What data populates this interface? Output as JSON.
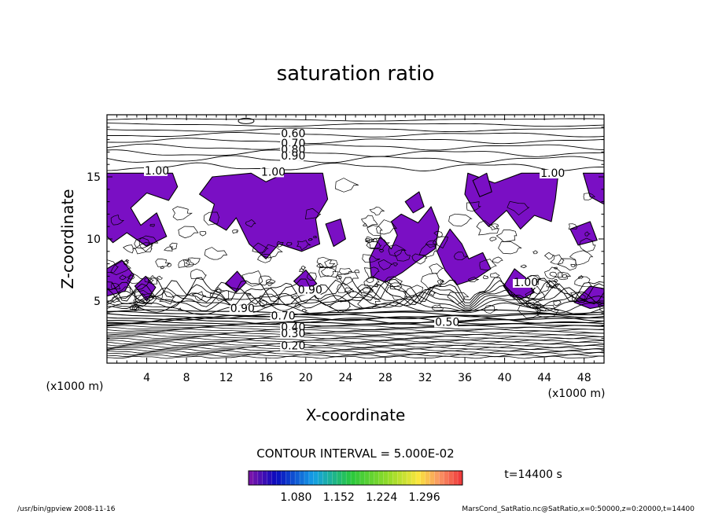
{
  "chart_data": {
    "type": "contour",
    "title": "saturation ratio",
    "xlabel": "X-coordinate",
    "ylabel": "Z-coordinate",
    "x_unit": "(x1000 m)",
    "y_unit": "(x1000 m)",
    "xlim": [
      0,
      50
    ],
    "ylim": [
      0,
      20
    ],
    "x_ticks": [
      4,
      8,
      12,
      16,
      20,
      24,
      28,
      32,
      36,
      40,
      44,
      48
    ],
    "y_ticks": [
      5,
      10,
      15
    ],
    "contour_labels": [
      {
        "text": "0.60",
        "x": 17.5,
        "y": 18.2
      },
      {
        "text": "0.70",
        "x": 17.5,
        "y": 17.4
      },
      {
        "text": "0.80",
        "x": 17.5,
        "y": 16.9
      },
      {
        "text": "0.90",
        "x": 17.5,
        "y": 16.4
      },
      {
        "text": "1.00",
        "x": 3.8,
        "y": 15.2
      },
      {
        "text": "1.00",
        "x": 15.5,
        "y": 15.1
      },
      {
        "text": "1.00",
        "x": 43.6,
        "y": 15.0
      },
      {
        "text": "1.00",
        "x": 40.9,
        "y": 6.2
      },
      {
        "text": "0.90",
        "x": 19.2,
        "y": 5.6
      },
      {
        "text": "0.90",
        "x": 12.4,
        "y": 4.1
      },
      {
        "text": "0.70",
        "x": 16.5,
        "y": 3.5
      },
      {
        "text": "0.50",
        "x": 33.0,
        "y": 3.0
      },
      {
        "text": "0.40",
        "x": 17.5,
        "y": 2.6
      },
      {
        "text": "0.30",
        "x": 17.5,
        "y": 2.1
      },
      {
        "text": "0.20",
        "x": 17.5,
        "y": 1.1
      }
    ],
    "shaded_region": {
      "threshold": 1.0,
      "color": "#7a0fc4"
    },
    "colorbar": {
      "tick_labels": [
        "1.080",
        "1.152",
        "1.224",
        "1.296"
      ],
      "levels": [
        1.0,
        1.008,
        1.016,
        1.024,
        1.032,
        1.04,
        1.048,
        1.056,
        1.064,
        1.072,
        1.08,
        1.088,
        1.096,
        1.104,
        1.112,
        1.12,
        1.128,
        1.136,
        1.144,
        1.152,
        1.16,
        1.168,
        1.176,
        1.184,
        1.192,
        1.2,
        1.208,
        1.216,
        1.224,
        1.232,
        1.24,
        1.248,
        1.256,
        1.264,
        1.272,
        1.28,
        1.288,
        1.296,
        1.304,
        1.312,
        1.32,
        1.328,
        1.336,
        1.344,
        1.352,
        1.36
      ]
    },
    "contour_interval_text": "CONTOUR INTERVAL = 5.000E-02",
    "time_text": "t=14400 s",
    "grid": false
  },
  "footer": {
    "left": "/usr/bin/gpview  2008-11-16",
    "right": "MarsCond_SatRatio.nc@SatRatio,x=0:50000,z=0:20000,t=14400"
  }
}
